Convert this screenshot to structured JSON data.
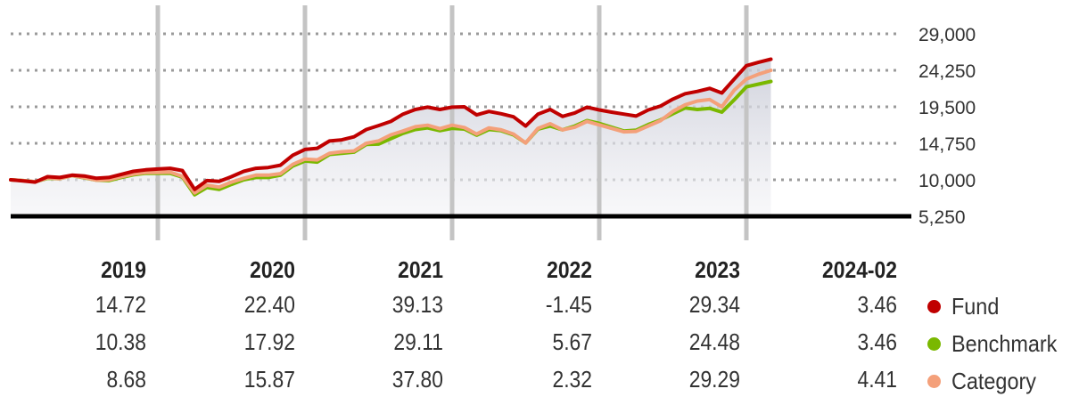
{
  "chart_data": {
    "type": "line",
    "x": [
      "2018-12",
      "2019-01",
      "2019-02",
      "2019-03",
      "2019-04",
      "2019-05",
      "2019-06",
      "2019-07",
      "2019-08",
      "2019-09",
      "2019-10",
      "2019-11",
      "2019-12",
      "2020-01",
      "2020-02",
      "2020-03",
      "2020-04",
      "2020-05",
      "2020-06",
      "2020-07",
      "2020-08",
      "2020-09",
      "2020-10",
      "2020-11",
      "2020-12",
      "2021-01",
      "2021-02",
      "2021-03",
      "2021-04",
      "2021-05",
      "2021-06",
      "2021-07",
      "2021-08",
      "2021-09",
      "2021-10",
      "2021-11",
      "2021-12",
      "2022-01",
      "2022-02",
      "2022-03",
      "2022-04",
      "2022-05",
      "2022-06",
      "2022-07",
      "2022-08",
      "2022-09",
      "2022-10",
      "2022-11",
      "2022-12",
      "2023-01",
      "2023-02",
      "2023-03",
      "2023-04",
      "2023-05",
      "2023-06",
      "2023-07",
      "2023-08",
      "2023-09",
      "2023-10",
      "2023-11",
      "2023-12",
      "2024-01",
      "2024-02"
    ],
    "y_ticks": [
      29000,
      24250,
      19500,
      14750,
      10000,
      5250
    ],
    "y_tick_labels": [
      "29,000",
      "24,250",
      "19,500",
      "14,750",
      "10,000",
      "5,250"
    ],
    "ylim": [
      5250,
      29000
    ],
    "year_markers": [
      "2019-12",
      "2020-12",
      "2021-12",
      "2022-12",
      "2023-12"
    ],
    "series": [
      {
        "name": "Fund",
        "color": "#c00000",
        "values": [
          10000,
          9850,
          9700,
          10400,
          10300,
          10600,
          10500,
          10200,
          10300,
          10700,
          11100,
          11300,
          11400,
          11500,
          11200,
          8750,
          9900,
          9800,
          10400,
          11100,
          11500,
          11600,
          11900,
          13200,
          13950,
          14100,
          15050,
          15200,
          15600,
          16550,
          17050,
          17600,
          18550,
          19150,
          19450,
          19150,
          19450,
          19500,
          18450,
          18900,
          18600,
          18200,
          17000,
          18550,
          19150,
          18250,
          18700,
          19450,
          19100,
          18800,
          18550,
          18300,
          19100,
          19600,
          20500,
          21200,
          21500,
          21900,
          21300,
          23100,
          24850,
          25300,
          25700
        ]
      },
      {
        "name": "Benchmark",
        "color": "#7ab800",
        "values": [
          10000,
          9900,
          9750,
          10200,
          10150,
          10550,
          10250,
          9950,
          9900,
          10300,
          10650,
          10850,
          10850,
          10850,
          10350,
          8050,
          9000,
          8750,
          9400,
          10000,
          10300,
          10300,
          10600,
          11800,
          12450,
          12300,
          13300,
          13450,
          13600,
          14600,
          14650,
          15350,
          16050,
          16550,
          16750,
          16400,
          16700,
          16600,
          15800,
          16550,
          16400,
          15850,
          14800,
          16600,
          17000,
          16500,
          17000,
          17700,
          17350,
          16850,
          16350,
          16450,
          17200,
          17800,
          18600,
          19350,
          19150,
          19300,
          18800,
          20400,
          22100,
          22450,
          22800
        ]
      },
      {
        "name": "Category",
        "color": "#f4a07a",
        "values": [
          10000,
          9900,
          9750,
          10250,
          10150,
          10550,
          10300,
          9950,
          10000,
          10400,
          10750,
          10950,
          10950,
          11000,
          10450,
          8300,
          9300,
          9050,
          9700,
          10200,
          10600,
          10600,
          10800,
          12000,
          12700,
          12600,
          13450,
          13650,
          13750,
          14750,
          15050,
          15850,
          16350,
          16900,
          17100,
          16650,
          17100,
          16800,
          15950,
          16750,
          16500,
          15950,
          14800,
          16700,
          17300,
          16500,
          16850,
          17600,
          17150,
          16700,
          16250,
          16300,
          17000,
          17700,
          18900,
          19750,
          20250,
          20450,
          19500,
          21650,
          23100,
          23750,
          24250
        ]
      }
    ]
  },
  "returns_table": {
    "columns": [
      "2019",
      "2020",
      "2021",
      "2022",
      "2023",
      "2024-02"
    ],
    "rows": [
      {
        "series": "Fund",
        "values": [
          "14.72",
          "22.40",
          "39.13",
          "-1.45",
          "29.34",
          "3.46"
        ]
      },
      {
        "series": "Benchmark",
        "values": [
          "10.38",
          "17.92",
          "29.11",
          "5.67",
          "24.48",
          "3.46"
        ]
      },
      {
        "series": "Category",
        "values": [
          "8.68",
          "15.87",
          "37.80",
          "2.32",
          "29.29",
          "4.41"
        ]
      }
    ]
  },
  "legend": [
    {
      "label": "Fund",
      "color": "#c00000"
    },
    {
      "label": "Benchmark",
      "color": "#7ab800"
    },
    {
      "label": "Category",
      "color": "#f4a07a"
    }
  ]
}
